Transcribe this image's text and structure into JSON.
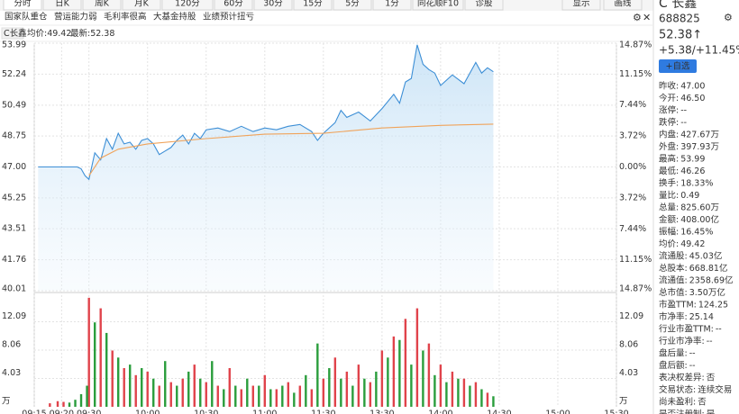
{
  "tabs": [
    "分时",
    "日K",
    "周K",
    "月K",
    "120分",
    "60分",
    "30分",
    "15分",
    "5分",
    "1分",
    "同花顺F10",
    "诊股"
  ],
  "toolbar": [
    "显示",
    "画线"
  ],
  "tags": [
    "国家队重仓",
    "营运能力弱",
    "毛利率很高",
    "大基金持股",
    "业绩预计扭亏"
  ],
  "chart_data": {
    "type": "line",
    "title": "C长鑫",
    "xlim": [
      -28,
      270
    ],
    "xticks": [
      {
        "value": -28,
        "label": "09:15"
      },
      {
        "value": -14,
        "label": "09:20"
      },
      {
        "value": 0,
        "label": "09:30"
      },
      {
        "value": 30,
        "label": "10:00"
      },
      {
        "value": 60,
        "label": "10:30"
      },
      {
        "value": 90,
        "label": "11:00"
      },
      {
        "value": 120,
        "label": "11:30"
      },
      {
        "value": 150,
        "label": "13:30"
      },
      {
        "value": 180,
        "label": "14:00"
      },
      {
        "value": 210,
        "label": "14:30"
      },
      {
        "value": 240,
        "label": "15:00"
      },
      {
        "value": 270,
        "label": "15:30"
      }
    ],
    "ylim": [
      40.01,
      53.99
    ],
    "yticks": [
      53.99,
      52.24,
      50.49,
      48.75,
      {
        "value": 47,
        "label": "47.00"
      },
      45.25,
      43.51,
      41.76,
      40.01
    ],
    "y2lim": [
      -14.87,
      14.87
    ],
    "y2ticks": [
      {
        "value": 14.87,
        "label": "14.87%"
      },
      {
        "value": 11.15,
        "label": "11.15%"
      },
      {
        "value": 7.44,
        "label": "7.44%"
      },
      {
        "value": 3.72,
        "label": "3.72%"
      },
      {
        "value": 0,
        "label": "0.00%"
      },
      {
        "value": -3.72,
        "label": "3.72%"
      },
      {
        "value": -7.44,
        "label": "7.44%"
      },
      {
        "value": -11.15,
        "label": "11.15%"
      },
      {
        "value": -14.87,
        "label": "14.87%"
      }
    ],
    "grid": true,
    "series": [
      {
        "name": "最新:52.38",
        "color": "#3d8fd6",
        "x": [
          -26,
          -6,
          -4,
          -2,
          0,
          3,
          6,
          9,
          12,
          15,
          18,
          21,
          24,
          27,
          30,
          33,
          36,
          39,
          42,
          45,
          48,
          51,
          54,
          57,
          60,
          66,
          72,
          78,
          84,
          90,
          96,
          102,
          108,
          114,
          117,
          120,
          126,
          129,
          132,
          138,
          144,
          150,
          156,
          159,
          162,
          165,
          168,
          171,
          174,
          177,
          180,
          186,
          192,
          198,
          201,
          204,
          207
        ],
        "values": [
          47.0,
          47.0,
          46.9,
          46.5,
          46.3,
          47.8,
          47.4,
          48.6,
          48.0,
          48.9,
          48.3,
          48.4,
          48.0,
          48.5,
          48.6,
          48.3,
          47.7,
          47.9,
          48.1,
          48.5,
          48.8,
          48.3,
          48.9,
          48.6,
          49.1,
          49.2,
          49.0,
          49.3,
          49.0,
          49.2,
          49.1,
          49.3,
          49.4,
          49.0,
          48.5,
          48.9,
          49.5,
          50.2,
          49.8,
          50.1,
          49.6,
          50.3,
          51.1,
          50.6,
          51.8,
          52.0,
          53.9,
          52.8,
          52.5,
          52.3,
          51.6,
          52.2,
          51.7,
          52.9,
          52.3,
          52.6,
          52.38
        ]
      },
      {
        "name": "均价:49.42",
        "color": "#f0a35a",
        "x": [
          0,
          6,
          15,
          30,
          60,
          90,
          120,
          150,
          180,
          207
        ],
        "values": [
          46.5,
          47.5,
          48.0,
          48.3,
          48.6,
          48.85,
          48.9,
          49.2,
          49.35,
          49.42
        ]
      }
    ],
    "volume": {
      "type": "bar",
      "ylim": [
        0,
        16.12
      ],
      "yticks": [
        {
          "value": 0,
          "label": "万"
        },
        4.03,
        8.06,
        12.09
      ],
      "series": [
        {
          "color": "#e0434b",
          "x": [
            -20,
            -16,
            -13,
            0,
            6,
            12,
            18,
            24,
            30,
            36,
            42,
            48,
            54,
            60,
            66,
            72,
            78,
            84,
            90,
            96,
            102,
            108,
            114,
            120,
            126,
            132,
            138,
            144,
            150,
            156,
            162,
            168,
            174,
            180,
            186,
            192,
            198,
            204
          ],
          "values": [
            0.5,
            0.8,
            0.7,
            15.5,
            14.0,
            8.0,
            5.5,
            4.5,
            5.0,
            3.0,
            3.5,
            4.0,
            6.0,
            3.5,
            3.0,
            5.5,
            2.5,
            3.0,
            4.5,
            2.5,
            3.5,
            3.0,
            2.5,
            4.0,
            7.0,
            5.0,
            6.0,
            3.5,
            8.0,
            10.0,
            12.5,
            14.0,
            9.0,
            6.0,
            5.0,
            4.0,
            3.5,
            2.0
          ]
        },
        {
          "color": "#2a9d3c",
          "x": [
            -10,
            -7,
            -4,
            -1,
            3,
            9,
            15,
            21,
            27,
            33,
            39,
            45,
            51,
            57,
            63,
            69,
            75,
            81,
            87,
            93,
            99,
            105,
            111,
            117,
            123,
            129,
            135,
            141,
            147,
            153,
            159,
            165,
            171,
            177,
            183,
            189,
            195,
            201,
            207
          ],
          "values": [
            0.6,
            1.0,
            1.8,
            3.0,
            12.0,
            10.5,
            7.0,
            6.0,
            5.5,
            4.0,
            6.5,
            3.0,
            5.0,
            4.0,
            6.5,
            2.5,
            3.0,
            4.0,
            3.0,
            2.5,
            3.0,
            2.0,
            4.5,
            9.0,
            5.5,
            4.0,
            3.0,
            4.0,
            5.0,
            7.0,
            9.5,
            6.0,
            8.0,
            4.5,
            3.5,
            4.0,
            3.0,
            2.5,
            1.5
          ]
        }
      ]
    }
  },
  "quote": {
    "name": "C 长鑫",
    "code": "688825",
    "price": "52.38↑",
    "change": "+5.38/+11.45%",
    "button": "+自选"
  },
  "stats": [
    {
      "label": "昨收:",
      "value": "47.00"
    },
    {
      "label": "今开:",
      "value": "46.50",
      "color": "#2a9d3c"
    },
    {
      "label": "涨停:",
      "value": "--"
    },
    {
      "label": "跌停:",
      "value": "--"
    },
    {
      "label": "内盘:",
      "value": "427.67万",
      "color": "#e0434b"
    },
    {
      "label": "外盘:",
      "value": "397.93万",
      "color": "#e0434b"
    },
    {
      "label": "最高:",
      "value": "53.99",
      "color": "#e0434b"
    },
    {
      "label": "最低:",
      "value": "46.26",
      "color": "#2a9d3c"
    },
    {
      "label": "换手:",
      "value": "18.33%"
    },
    {
      "label": "量比:",
      "value": "0.49"
    },
    {
      "label": "总量:",
      "value": "825.60万"
    },
    {
      "label": "金额:",
      "value": "408.00亿"
    },
    {
      "label": "振幅:",
      "value": "16.45%"
    },
    {
      "label": "均价:",
      "value": "49.42",
      "color": "#e0434b"
    },
    {
      "label": "流通股:",
      "value": "45.03亿"
    },
    {
      "label": "总股本:",
      "value": "668.81亿"
    },
    {
      "label": "流通值:",
      "value": "2358.69亿"
    },
    {
      "label": "总市值:",
      "value": "3.50万亿"
    },
    {
      "label": "市盈TTM:",
      "value": "124.25"
    },
    {
      "label": "市净率:",
      "value": "25.14"
    },
    {
      "label": "行业市盈TTM:",
      "value": "--"
    },
    {
      "label": "行业市净率:",
      "value": "--"
    },
    {
      "label": "盘后量:",
      "value": "--"
    },
    {
      "label": "盘后额:",
      "value": "--"
    },
    {
      "label": "表决权差异:",
      "value": "否"
    },
    {
      "label": "交易状态:",
      "value": "连续交易"
    },
    {
      "label": "尚未盈利:",
      "value": "否"
    },
    {
      "label": "是否注册制:",
      "value": "是"
    }
  ]
}
